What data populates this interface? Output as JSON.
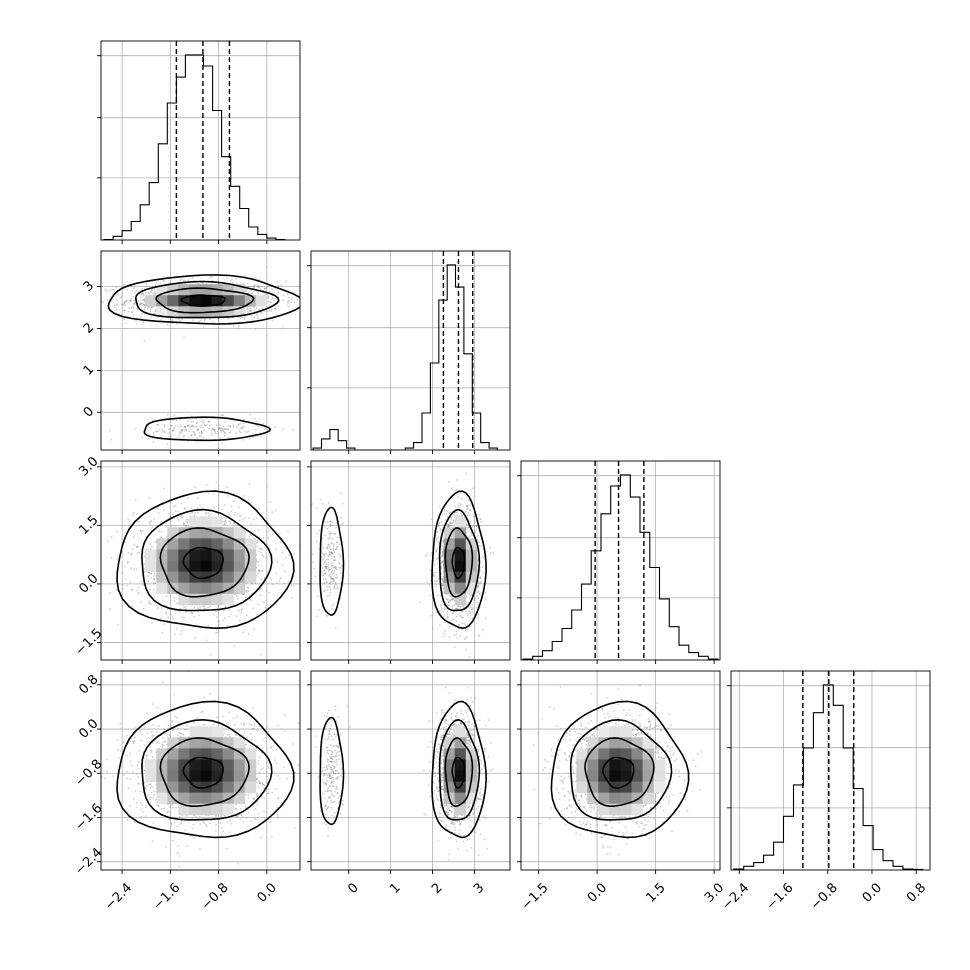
{
  "chart_data": {
    "type": "corner",
    "grid": true,
    "panel_ranges": [
      [
        -2.75,
        0.55
      ],
      [
        -0.9,
        3.85
      ],
      [
        -1.95,
        3.15
      ],
      [
        -2.55,
        1.05
      ]
    ],
    "tick_labels": [
      [
        "-2.4",
        "-1.6",
        "-0.8",
        "0.0"
      ],
      [
        "0",
        "1",
        "2",
        "3"
      ],
      [
        "-1.5",
        "0.0",
        "1.5",
        "3.0"
      ],
      [
        "-2.4",
        "-1.6",
        "-0.8",
        "0.0",
        "0.8"
      ]
    ],
    "tick_values": [
      [
        -2.4,
        -1.6,
        -0.8,
        0.0
      ],
      [
        0,
        1,
        2,
        3
      ],
      [
        -1.5,
        0.0,
        1.5,
        3.0
      ],
      [
        -2.4,
        -1.6,
        -0.8,
        0.0,
        0.8
      ]
    ],
    "histograms": [
      {
        "bins_start": -2.7,
        "bin_width": 0.15,
        "counts": [
          0.2,
          2,
          5,
          10,
          19,
          31,
          52,
          74,
          88,
          100,
          100,
          94,
          70,
          45,
          29,
          17,
          7,
          3,
          1,
          0.2
        ],
        "quantiles": [
          -1.5,
          -1.06,
          -0.62
        ]
      },
      {
        "bins_start": -0.85,
        "bin_width": 0.2,
        "counts": [
          1,
          6,
          11,
          5,
          1,
          0,
          0,
          0,
          0,
          0,
          0,
          1,
          4,
          20,
          47,
          81,
          100,
          88,
          52,
          20,
          4,
          1
        ],
        "quantiles": [
          2.26,
          2.62,
          2.96
        ]
      },
      {
        "bins_start": -1.9,
        "bin_width": 0.25,
        "counts": [
          0.5,
          2,
          5,
          10,
          17,
          27,
          41,
          59,
          79,
          94,
          100,
          88,
          69,
          50,
          33,
          18,
          8,
          4,
          2,
          0.5
        ],
        "quantiles": [
          -0.05,
          0.55,
          1.2
        ]
      },
      {
        "bins_start": -2.5,
        "bin_width": 0.18,
        "counts": [
          0.5,
          2,
          4,
          8,
          15,
          29,
          46,
          66,
          85,
          100,
          89,
          66,
          44,
          24,
          11,
          5,
          2,
          0.5,
          0.3
        ],
        "quantiles": [
          -1.25,
          -0.78,
          -0.33
        ]
      }
    ],
    "pairs": [
      {
        "row": 1,
        "col": 0,
        "blobs": [
          {
            "mx": -1.05,
            "my": 2.67,
            "sx": 0.55,
            "sy": 0.2,
            "w": 1.0
          },
          {
            "mx": -1.05,
            "my": -0.4,
            "sx": 0.45,
            "sy": 0.12,
            "w": 0.15
          }
        ]
      },
      {
        "row": 2,
        "col": 0,
        "blobs": [
          {
            "mx": -1.05,
            "my": 0.55,
            "sx": 0.5,
            "sy": 0.6,
            "w": 1.0
          }
        ]
      },
      {
        "row": 2,
        "col": 1,
        "blobs": [
          {
            "mx": 2.62,
            "my": 0.55,
            "sx": 0.22,
            "sy": 0.6,
            "w": 1.0
          },
          {
            "mx": -0.42,
            "my": 0.55,
            "sx": 0.12,
            "sy": 0.6,
            "w": 0.15
          }
        ]
      },
      {
        "row": 3,
        "col": 0,
        "blobs": [
          {
            "mx": -1.05,
            "my": -0.78,
            "sx": 0.5,
            "sy": 0.42,
            "w": 1.0
          }
        ]
      },
      {
        "row": 3,
        "col": 1,
        "blobs": [
          {
            "mx": 2.62,
            "my": -0.78,
            "sx": 0.22,
            "sy": 0.42,
            "w": 1.0
          },
          {
            "mx": -0.42,
            "my": -0.78,
            "sx": 0.12,
            "sy": 0.42,
            "w": 0.15
          }
        ]
      },
      {
        "row": 3,
        "col": 2,
        "blobs": [
          {
            "mx": 0.55,
            "my": -0.78,
            "sx": 0.6,
            "sy": 0.42,
            "w": 1.0
          }
        ]
      }
    ]
  }
}
